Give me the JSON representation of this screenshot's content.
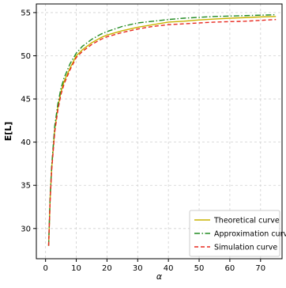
{
  "chart_data": {
    "type": "line",
    "title": "",
    "xlabel": "α",
    "ylabel": "E[L]",
    "xlim": [
      -3,
      77
    ],
    "ylim": [
      26.5,
      56
    ],
    "xticks": [
      0,
      10,
      20,
      30,
      40,
      50,
      60,
      70
    ],
    "yticks": [
      30,
      35,
      40,
      45,
      50,
      55
    ],
    "grid": true,
    "legend": "bottom-right",
    "series": [
      {
        "name": "Theoretical curve",
        "color": "#c8b400",
        "dash": "solid",
        "x": [
          1,
          1.5,
          2,
          3,
          4,
          5,
          6,
          8,
          10,
          12,
          15,
          18,
          20,
          25,
          30,
          35,
          40,
          45,
          50,
          55,
          60,
          65,
          70,
          75
        ],
        "y": [
          28.0,
          33.5,
          37.0,
          41.5,
          44.0,
          45.8,
          47.0,
          48.6,
          50.0,
          50.7,
          51.5,
          52.1,
          52.4,
          52.9,
          53.3,
          53.6,
          53.9,
          54.0,
          54.15,
          54.25,
          54.35,
          54.42,
          54.5,
          54.55
        ]
      },
      {
        "name": "Approximation curve",
        "color": "#228b22",
        "dash": "dashdot",
        "x": [
          1,
          1.5,
          2,
          3,
          4,
          5,
          6,
          8,
          10,
          12,
          15,
          18,
          20,
          25,
          30,
          35,
          40,
          45,
          50,
          55,
          60,
          65,
          70,
          75
        ],
        "y": [
          28.0,
          33.8,
          37.3,
          41.9,
          44.4,
          46.2,
          47.4,
          49.1,
          50.3,
          51.1,
          51.9,
          52.5,
          52.8,
          53.4,
          53.8,
          54.0,
          54.2,
          54.35,
          54.45,
          54.55,
          54.6,
          54.65,
          54.7,
          54.75
        ]
      },
      {
        "name": "Simulation curve",
        "color": "#e8281e",
        "dash": "dashed",
        "x": [
          1,
          1.5,
          2,
          3,
          4,
          5,
          6,
          8,
          10,
          12,
          15,
          18,
          20,
          25,
          30,
          35,
          40,
          45,
          50,
          55,
          60,
          65,
          70,
          75
        ],
        "y": [
          28.0,
          33.3,
          36.8,
          41.2,
          43.7,
          45.5,
          46.7,
          48.4,
          49.8,
          50.5,
          51.3,
          51.9,
          52.2,
          52.7,
          53.1,
          53.4,
          53.6,
          53.7,
          53.8,
          53.9,
          53.95,
          54.0,
          54.1,
          54.2
        ]
      }
    ]
  }
}
